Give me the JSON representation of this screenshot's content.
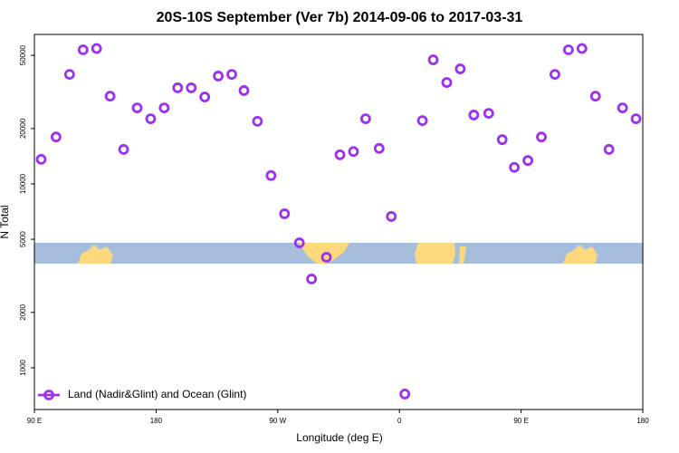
{
  "chart_data": {
    "type": "scatter",
    "title": "20S-10S September (Ver 7b)   2014-09-06 to 2017-03-31",
    "x_label": "Longitude (deg E)",
    "y_label": "N Total",
    "xlim": [
      90,
      540
    ],
    "xticks": [
      {
        "value": 90,
        "label": "90 E"
      },
      180,
      {
        "value": 270,
        "label": "90 W"
      },
      {
        "value": 360,
        "label": "0"
      },
      {
        "value": 450,
        "label": "90 E"
      },
      {
        "value": 540,
        "label": "180"
      }
    ],
    "ylim": [
      593,
      65000
    ],
    "y_scale": "log",
    "yticks": [
      1000,
      2000,
      5000,
      10000,
      20000,
      50000
    ],
    "legend": "bottom left",
    "series": [
      {
        "name": "Land (Nadir&Glint) and Ocean (Glint)",
        "color": "#9b30f0",
        "x": [
          95,
          106,
          116,
          126,
          136,
          146,
          156,
          166,
          176,
          186,
          196,
          206,
          216,
          226,
          236,
          245,
          255,
          265,
          275,
          286,
          295,
          306,
          316,
          326,
          335,
          345,
          354,
          364,
          377,
          385,
          395,
          405,
          415,
          426,
          436,
          445,
          455,
          465,
          475,
          485,
          495,
          505,
          515,
          525,
          535
        ],
        "values": [
          13600,
          18000,
          39400,
          53600,
          54500,
          30000,
          15400,
          25900,
          22600,
          25900,
          33300,
          33300,
          29700,
          38600,
          39400,
          32200,
          21900,
          11100,
          6880,
          4780,
          3040,
          3990,
          14400,
          15000,
          22600,
          15600,
          6650,
          720,
          22100,
          47300,
          35600,
          42200,
          23700,
          24200,
          17400,
          12300,
          13400,
          18000,
          39400,
          53600,
          54500,
          30000,
          15400,
          25900,
          22600
        ]
      }
    ]
  }
}
